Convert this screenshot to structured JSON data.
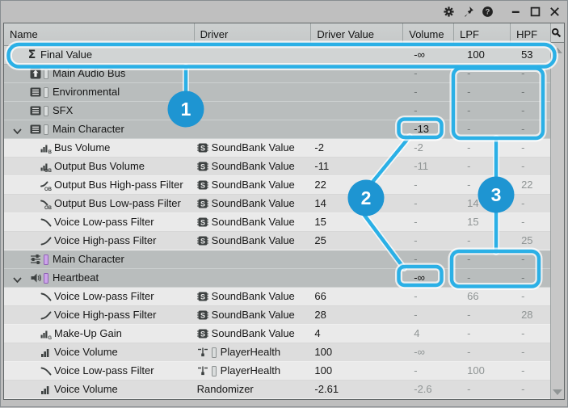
{
  "titlebar": {
    "buttons": [
      {
        "name": "settings"
      },
      {
        "name": "pin"
      },
      {
        "name": "help"
      },
      {
        "name": "minimize"
      },
      {
        "name": "maximize"
      },
      {
        "name": "close"
      }
    ]
  },
  "table": {
    "columns": [
      {
        "key": "name",
        "label": "Name"
      },
      {
        "key": "driver",
        "label": "Driver"
      },
      {
        "key": "driver_value",
        "label": "Driver Value"
      },
      {
        "key": "volume",
        "label": "Volume"
      },
      {
        "key": "lpf",
        "label": "LPF"
      },
      {
        "key": "hpf",
        "label": "HPF"
      }
    ],
    "search_button_icon": "magnifier-icon",
    "rows": [
      {
        "kind": "final",
        "icon": "sigma-icon",
        "name": "Final Value",
        "driver": "",
        "dv": "",
        "vol": "-∞",
        "lpf": "100",
        "hpf": "53",
        "volStrong": true,
        "filtStrong": true
      },
      {
        "kind": "group",
        "icon": "master-bus-icon",
        "chip": "gray",
        "name": "Main Audio Bus",
        "driver": "",
        "dv": "",
        "vol": "-",
        "lpf": "-",
        "hpf": "-"
      },
      {
        "kind": "group",
        "icon": "bus-icon",
        "chip": "gray",
        "name": "Environmental",
        "driver": "",
        "dv": "",
        "vol": "-",
        "lpf": "-",
        "hpf": "-"
      },
      {
        "kind": "group",
        "icon": "bus-icon",
        "chip": "gray",
        "name": "SFX",
        "driver": "",
        "dv": "",
        "vol": "-",
        "lpf": "-",
        "hpf": "-"
      },
      {
        "kind": "group",
        "icon": "bus-icon",
        "chip": "gray",
        "name": "Main Character",
        "expander": true,
        "driver": "",
        "dv": "",
        "vol": "-13",
        "volStrong": true,
        "lpf": "-",
        "hpf": "-"
      },
      {
        "kind": "child",
        "icon": "bus-volume-icon",
        "name": "Bus Volume",
        "driver": "SoundBank Value",
        "dicon": "soundbank-icon",
        "dv": "-2",
        "vol": "-2",
        "lpf": "-",
        "hpf": "-"
      },
      {
        "kind": "child",
        "icon": "output-bus-volume-icon",
        "name": "Output Bus Volume",
        "driver": "SoundBank Value",
        "dicon": "soundbank-icon",
        "dv": "-11",
        "vol": "-11",
        "lpf": "-",
        "hpf": "-"
      },
      {
        "kind": "child",
        "icon": "output-bus-hpf-icon",
        "name": "Output Bus High-pass Filter",
        "driver": "SoundBank Value",
        "dicon": "soundbank-icon",
        "dv": "22",
        "vol": "-",
        "lpf": "-",
        "hpf": "22"
      },
      {
        "kind": "child",
        "icon": "output-bus-lpf-icon",
        "name": "Output Bus Low-pass Filter",
        "driver": "SoundBank Value",
        "dicon": "soundbank-icon",
        "dv": "14",
        "vol": "-",
        "lpf": "14",
        "hpf": "-"
      },
      {
        "kind": "child",
        "icon": "lowpass-curve-icon",
        "name": "Voice Low-pass Filter",
        "driver": "SoundBank Value",
        "dicon": "soundbank-icon",
        "dv": "15",
        "vol": "-",
        "lpf": "15",
        "hpf": "-"
      },
      {
        "kind": "child",
        "icon": "highpass-curve-icon",
        "name": "Voice High-pass Filter",
        "driver": "SoundBank Value",
        "dicon": "soundbank-icon",
        "dv": "25",
        "vol": "-",
        "lpf": "-",
        "hpf": "25"
      },
      {
        "kind": "group",
        "icon": "actor-mixer-icon",
        "chip": "purple",
        "name": "Main Character",
        "driver": "",
        "dv": "",
        "vol": "-",
        "lpf": "-",
        "hpf": "-"
      },
      {
        "kind": "group",
        "icon": "sound-sfx-icon",
        "chip": "purple",
        "name": "Heartbeat",
        "expander": true,
        "driver": "",
        "dv": "",
        "vol": "-∞",
        "volStrong": true,
        "lpf": "-",
        "hpf": "-"
      },
      {
        "kind": "child",
        "icon": "lowpass-curve-icon",
        "name": "Voice Low-pass Filter",
        "driver": "SoundBank Value",
        "dicon": "soundbank-icon",
        "dv": "66",
        "vol": "-",
        "lpf": "66",
        "hpf": "-"
      },
      {
        "kind": "child",
        "icon": "highpass-curve-icon",
        "name": "Voice High-pass Filter",
        "driver": "SoundBank Value",
        "dicon": "soundbank-icon",
        "dv": "28",
        "vol": "-",
        "lpf": "-",
        "hpf": "28"
      },
      {
        "kind": "child",
        "icon": "makeup-gain-icon",
        "name": "Make-Up Gain",
        "driver": "SoundBank Value",
        "dicon": "soundbank-icon",
        "dv": "4",
        "vol": "4",
        "lpf": "-",
        "hpf": "-"
      },
      {
        "kind": "child",
        "icon": "voice-volume-icon",
        "name": "Voice Volume",
        "driver": "PlayerHealth",
        "dicon": "game-parameter-icon",
        "dchip": "gray",
        "dv": "100",
        "vol": "-∞",
        "lpf": "-",
        "hpf": "-"
      },
      {
        "kind": "child",
        "icon": "lowpass-curve-icon",
        "name": "Voice Low-pass Filter",
        "driver": "PlayerHealth",
        "dicon": "game-parameter-icon",
        "dchip": "gray",
        "dv": "100",
        "vol": "-",
        "lpf": "100",
        "hpf": "-"
      },
      {
        "kind": "child",
        "icon": "voice-volume-icon",
        "name": "Voice Volume",
        "driver": "Randomizer",
        "dv": "-2.61",
        "vol": "-2.6",
        "lpf": "-",
        "hpf": "-"
      }
    ]
  },
  "callouts": {
    "accent": "#2bb0e6",
    "circle_fill": "#1e95d2",
    "labels": [
      "1",
      "2",
      "3"
    ]
  }
}
